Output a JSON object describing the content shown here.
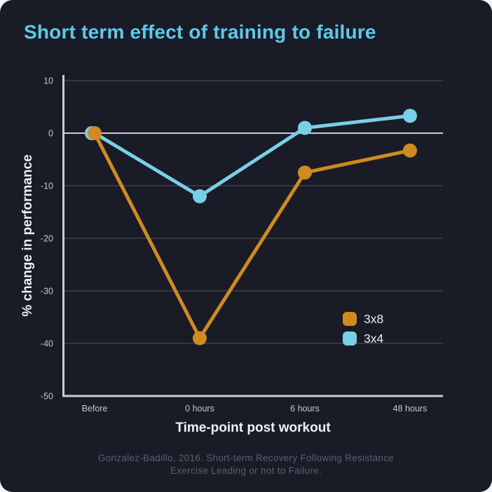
{
  "title": "Short term effect of training to failure",
  "chart_data": {
    "type": "line",
    "categories": [
      "Before",
      "0 hours",
      "6 hours",
      "48 hours"
    ],
    "series": [
      {
        "name": "3x8",
        "color": "#d08a1e",
        "values": [
          0,
          -39,
          -7.5,
          -3.3
        ]
      },
      {
        "name": "3x4",
        "color": "#79d0e6",
        "values": [
          0,
          -12,
          1,
          3.3
        ]
      }
    ],
    "xlabel": "Time-point post workout",
    "ylabel": "% change in performance",
    "yticks": [
      10,
      0,
      -10,
      -20,
      -30,
      -40,
      -50
    ],
    "ylim": [
      -50,
      10
    ],
    "grid": true,
    "zero_line_emphasized": true,
    "legend_position": "inside-right",
    "marker": "circle",
    "title": "Short term effect of training to failure"
  },
  "footer": {
    "line1": "Gonzalez-Badillo, 2016. Short-term Recovery Following Resistance",
    "line2": "Exercise Leading or not to Failure."
  },
  "colors": {
    "page_background": "#f4f5f7",
    "card_background": "#191c26",
    "title": "#5ec9e8",
    "grid": "#3d424e",
    "zero_line": "#c9cdd6",
    "axis": "#c9cdd6",
    "tick_label": "#c3c8d2",
    "axis_title": "#eef1f5",
    "legend_label": "#e9edf2",
    "footer_text": "#585f6f",
    "series_3x8": "#d08a1e",
    "series_3x4": "#79d0e6"
  }
}
